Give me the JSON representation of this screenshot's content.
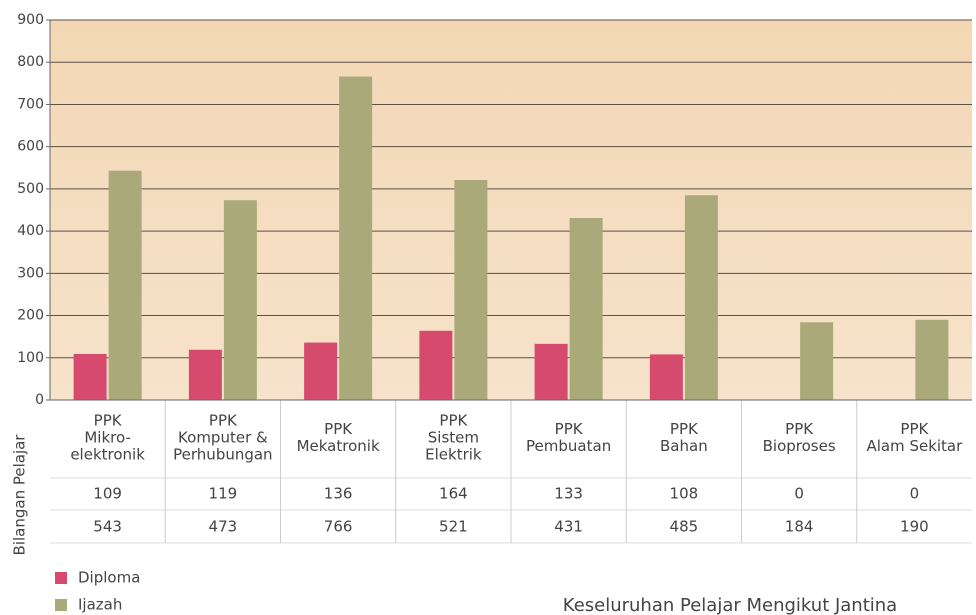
{
  "chart_data": {
    "type": "bar",
    "title": "Keseluruhan Pelajar Mengikut Jantina",
    "y_label": "Bilangan Pelajar",
    "categories": [
      [
        "PPK",
        "Mikro-",
        "elektronik"
      ],
      [
        "PPK",
        "Komputer &",
        "Perhubungan"
      ],
      [
        "PPK",
        "Mekatronik"
      ],
      [
        "PPK",
        "Sistem",
        "Elektrik"
      ],
      [
        "PPK",
        "Pembuatan"
      ],
      [
        "PPK",
        "Bahan"
      ],
      [
        "PPK",
        "Bioproses"
      ],
      [
        "PPK",
        "Alam Sekitar"
      ]
    ],
    "series": [
      {
        "name": "Diploma",
        "color": "#d64a6e",
        "values": [
          109,
          119,
          136,
          164,
          133,
          108,
          0,
          0
        ]
      },
      {
        "name": "Ijazah",
        "color": "#aaa97a",
        "values": [
          543,
          473,
          766,
          521,
          431,
          485,
          184,
          190
        ]
      }
    ],
    "ylim": [
      0,
      900
    ],
    "yticks": [
      0,
      100,
      200,
      300,
      400,
      500,
      600,
      700,
      800,
      900
    ],
    "grid": true
  }
}
